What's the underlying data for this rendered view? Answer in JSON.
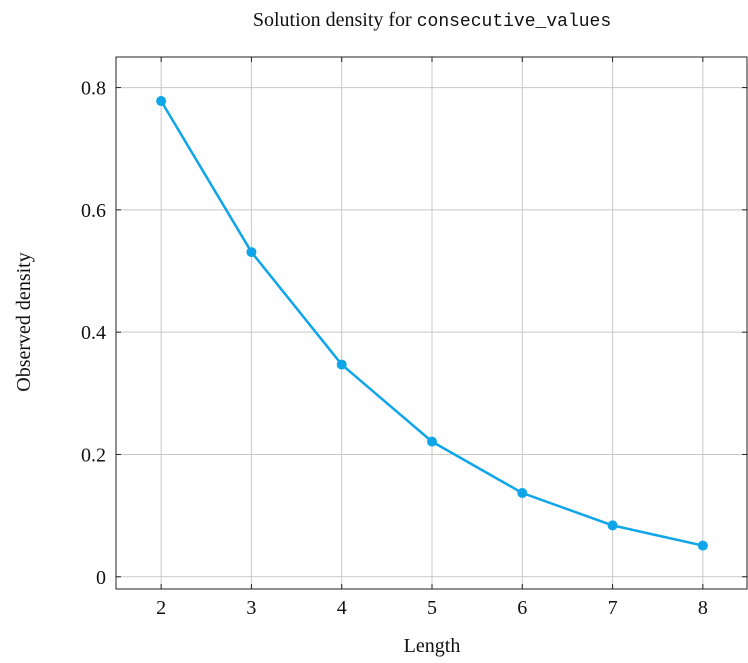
{
  "chart_data": {
    "type": "line",
    "title_prefix": "Solution density for ",
    "title_code": "consecutive_values",
    "xlabel": "Length",
    "ylabel": "Observed density",
    "x": [
      2,
      3,
      4,
      5,
      6,
      7,
      8
    ],
    "series": [
      {
        "values": [
          0.778,
          0.531,
          0.347,
          0.221,
          0.137,
          0.084,
          0.051
        ]
      }
    ],
    "xlim": [
      1.5,
      8.5
    ],
    "ylim": [
      -0.02,
      0.85
    ],
    "xticks": [
      2,
      3,
      4,
      5,
      6,
      7,
      8
    ],
    "yticks": [
      0,
      0.2,
      0.4,
      0.6,
      0.8
    ],
    "ytick_labels": [
      "0",
      "0.2",
      "0.4",
      "0.6",
      "0.8"
    ],
    "grid": true,
    "colors": {
      "line": "#0ea5e9",
      "grid": "#c8c8c8",
      "axis": "#222222"
    }
  }
}
